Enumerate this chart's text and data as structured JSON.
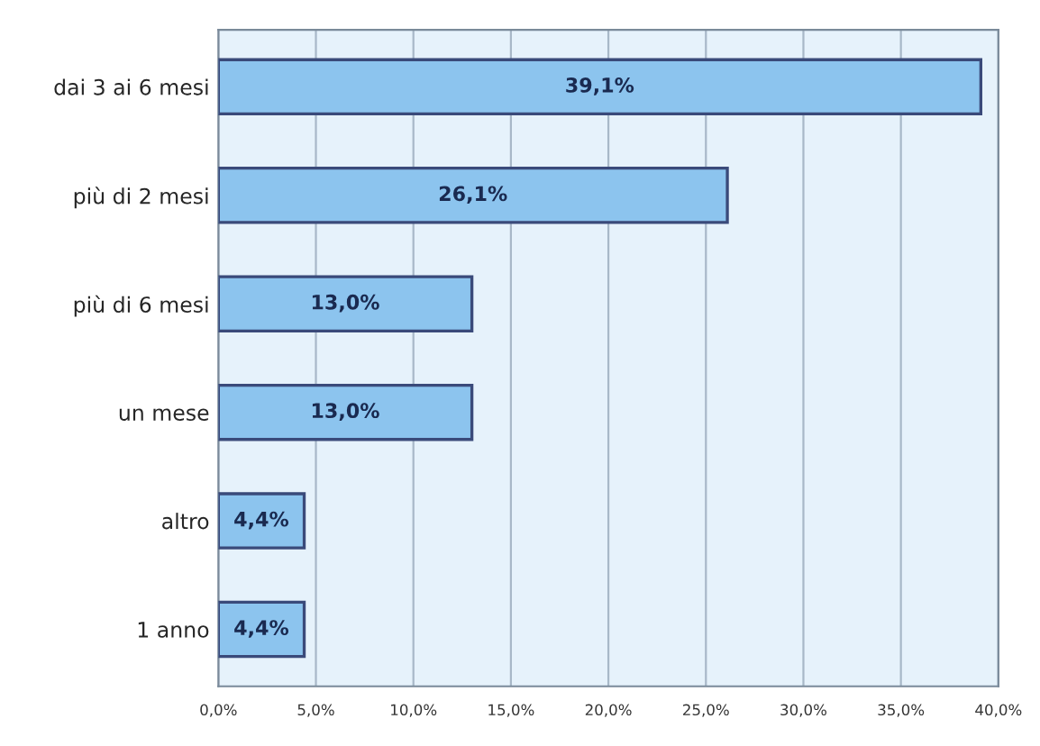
{
  "chart_data": {
    "type": "bar",
    "orientation": "horizontal",
    "categories": [
      "dai 3 ai 6 mesi",
      "più di 2 mesi",
      "più di 6 mesi",
      "un mese",
      "altro",
      "1 anno"
    ],
    "values": [
      39.1,
      26.1,
      13.0,
      13.0,
      4.4,
      4.4
    ],
    "value_labels": [
      "39,1%",
      "26,1%",
      "13,0%",
      "13,0%",
      "4,4%",
      "4,4%"
    ],
    "color": "#8cc4ee",
    "xlim": [
      0,
      40
    ],
    "xticks": [
      {
        "value": 0,
        "label": "0,0%"
      },
      {
        "value": 5,
        "label": "5,0%"
      },
      {
        "value": 10,
        "label": "10,0%"
      },
      {
        "value": 15,
        "label": "15,0%"
      },
      {
        "value": 20,
        "label": "20,0%"
      },
      {
        "value": 25,
        "label": "25,0%"
      },
      {
        "value": 30,
        "label": "30,0%"
      },
      {
        "value": 35,
        "label": "35,0%"
      },
      {
        "value": 40,
        "label": "40,0%"
      }
    ],
    "grid": "x"
  }
}
